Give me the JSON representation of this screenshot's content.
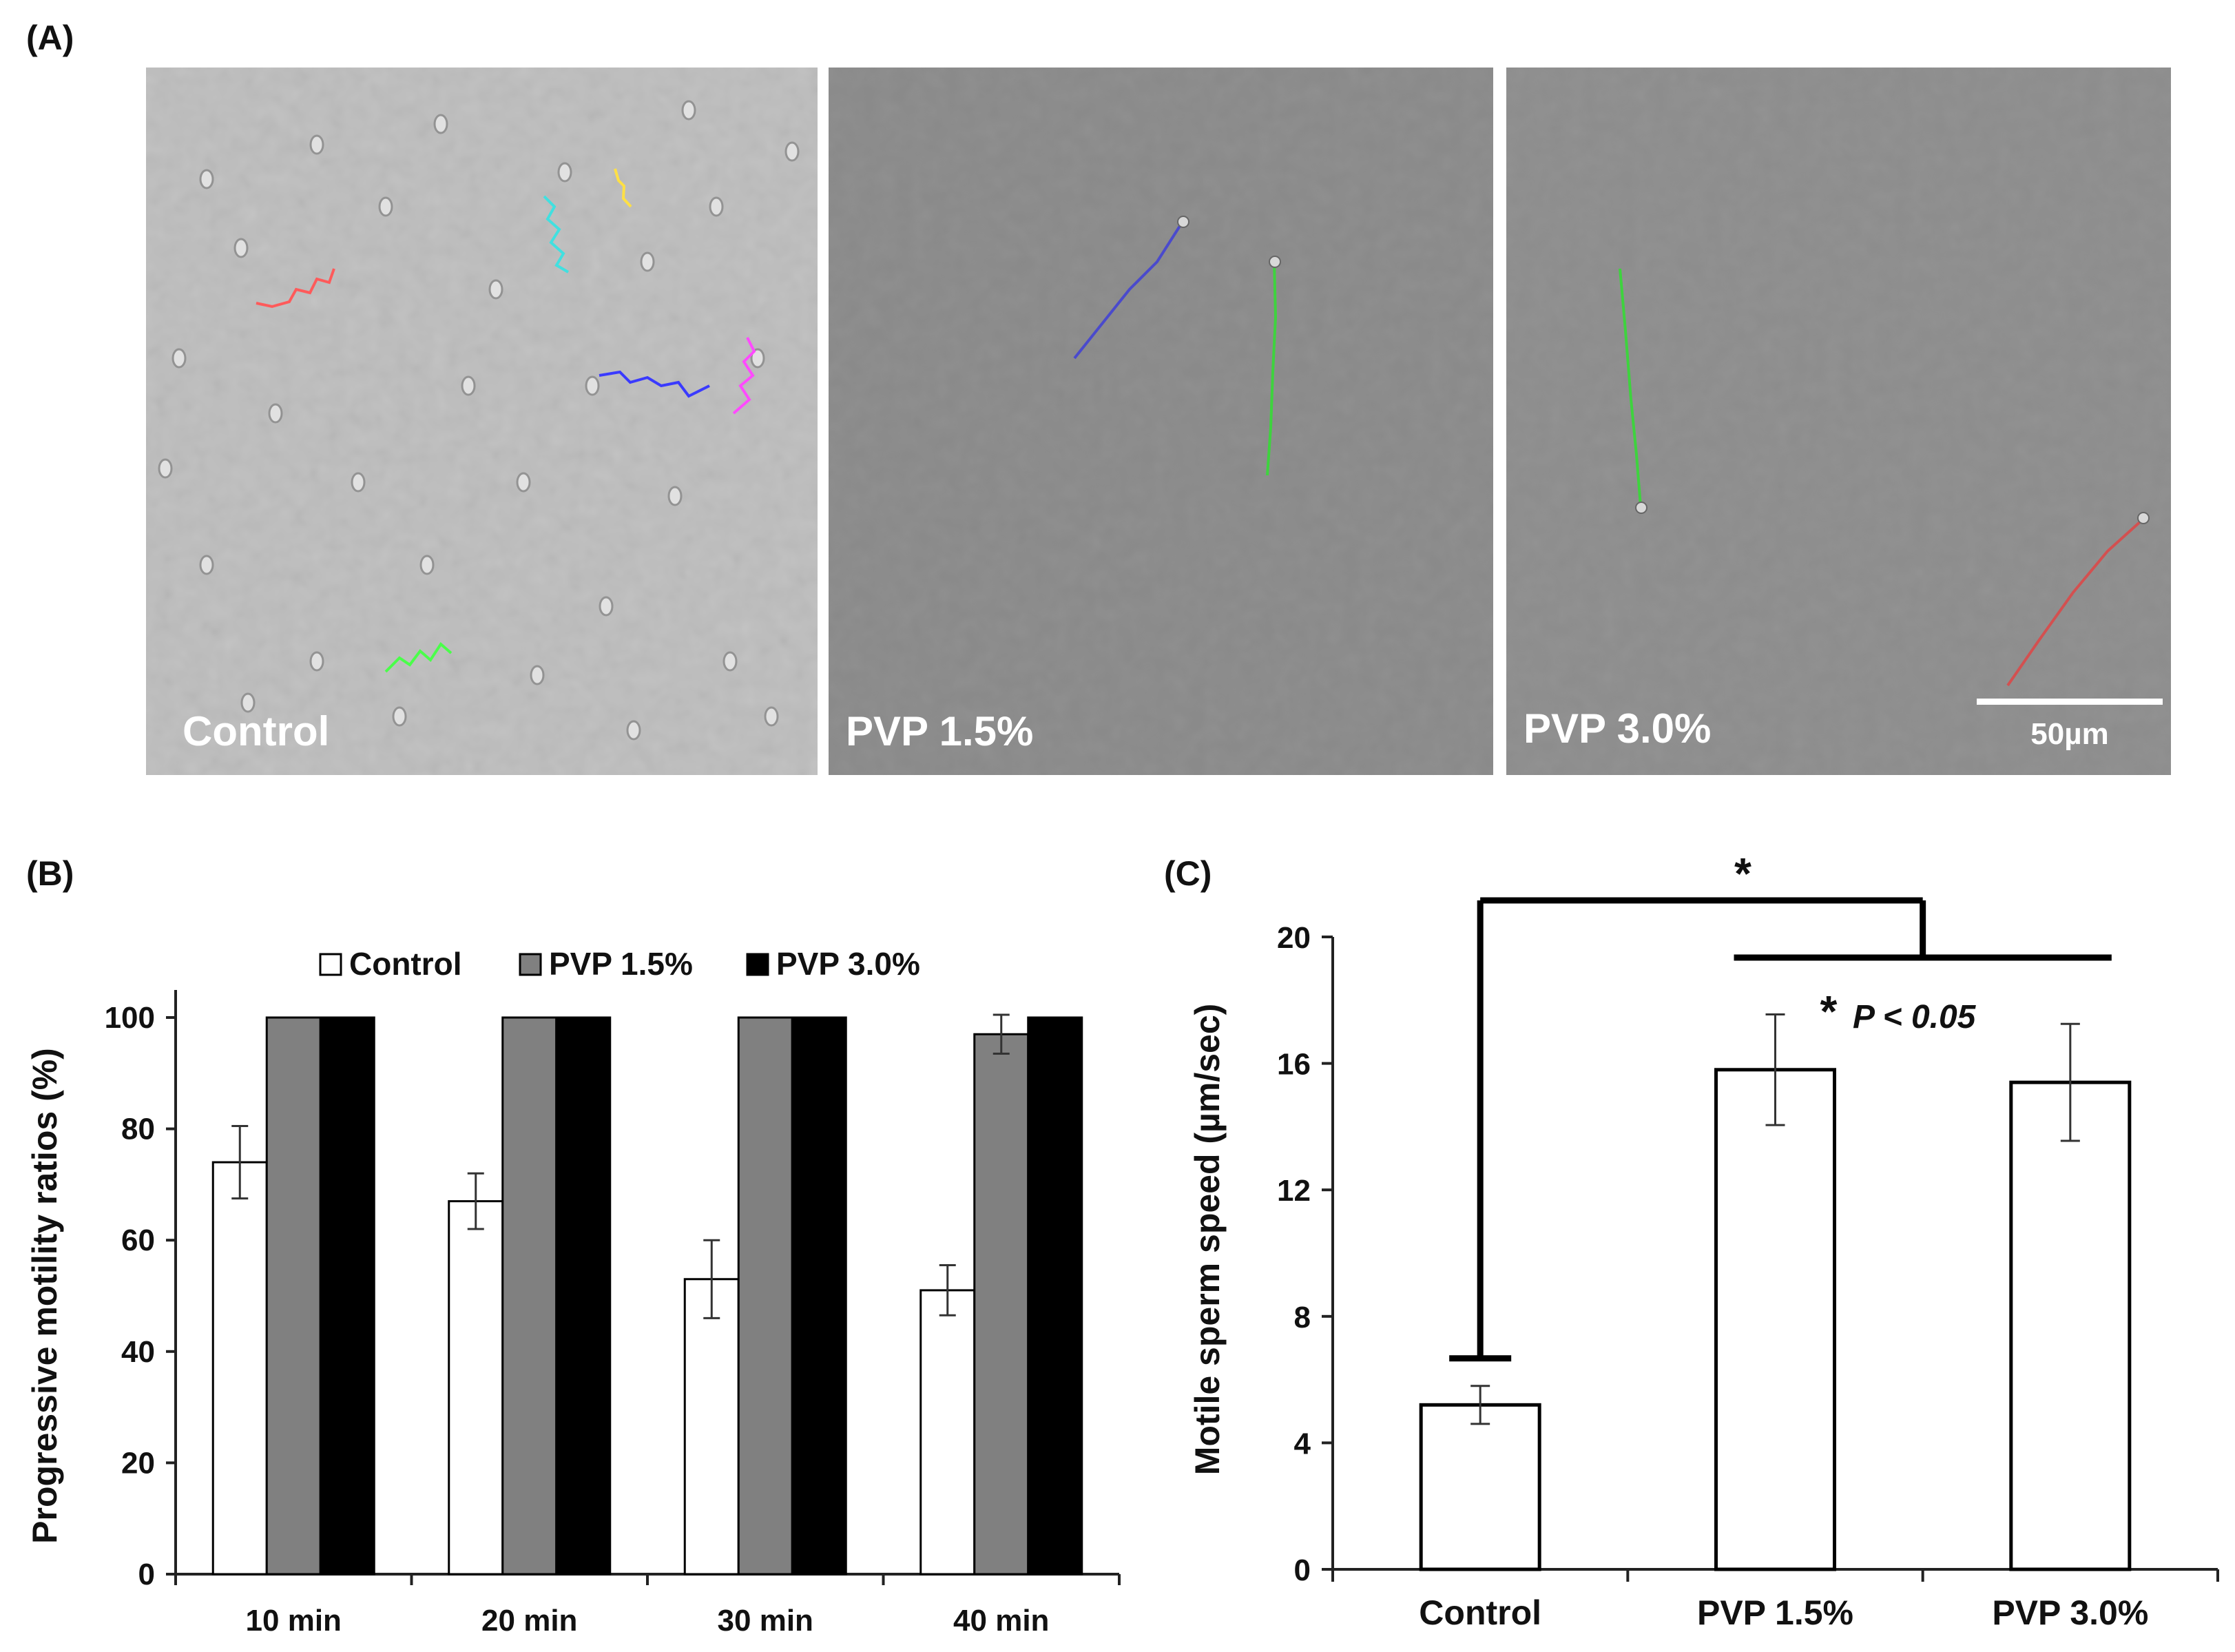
{
  "figure": {
    "panel_a_label": "(A)",
    "panel_b_label": "(B)",
    "panel_c_label": "(C)",
    "micrographs": [
      {
        "label": "Control",
        "tint": "#bdbdbd"
      },
      {
        "label": "PVP 1.5%",
        "tint": "#8a8a8a"
      },
      {
        "label": "PVP 3.0%",
        "tint": "#8d8d8d"
      }
    ],
    "scale_bar_label": "50µm"
  },
  "chart_data": [
    {
      "type": "bar",
      "panel": "B",
      "categories": [
        "10 min",
        "20 min",
        "30 min",
        "40 min"
      ],
      "series": [
        {
          "name": "Control",
          "color": "#ffffff",
          "values": [
            74,
            67,
            53,
            51
          ],
          "errors": [
            6.5,
            5,
            7,
            4.5
          ]
        },
        {
          "name": "PVP 1.5%",
          "color": "#808080",
          "values": [
            100,
            100,
            100,
            97
          ],
          "errors": [
            0,
            0,
            0,
            3.5
          ]
        },
        {
          "name": "PVP 3.0%",
          "color": "#000000",
          "values": [
            100,
            100,
            100,
            100
          ],
          "errors": [
            0,
            0,
            0,
            0
          ]
        }
      ],
      "ylabel": "Progressive motility ratios (%)",
      "ylim": [
        0,
        100
      ],
      "yticks": [
        0,
        20,
        40,
        60,
        80,
        100
      ],
      "legend": "top"
    },
    {
      "type": "bar",
      "panel": "C",
      "categories": [
        "Control",
        "PVP 1.5%",
        "PVP 3.0%"
      ],
      "values": [
        5.2,
        15.8,
        15.4
      ],
      "errors": [
        0.6,
        1.75,
        1.85
      ],
      "ylabel": "Motile sperm speed (µm/sec)",
      "ylim": [
        0,
        20
      ],
      "yticks": [
        0,
        4,
        8,
        12,
        16,
        20
      ],
      "significance_mark": "*",
      "annotation_star": "*",
      "annotation_text": "P < 0.05"
    }
  ]
}
